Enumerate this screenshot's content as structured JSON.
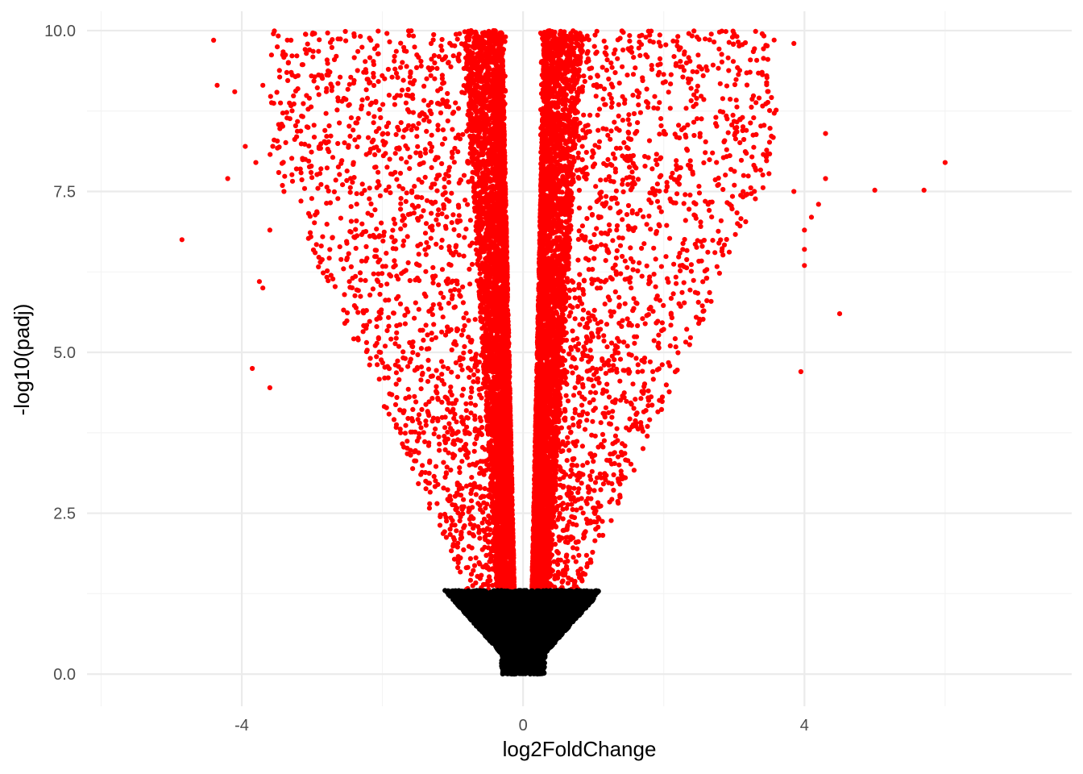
{
  "chart_data": {
    "type": "scatter",
    "title": "",
    "xlabel": "log2FoldChange",
    "ylabel": "-log10(padj)",
    "xlim": [
      -6.2,
      7.8
    ],
    "ylim": [
      -0.5,
      10.3
    ],
    "x_ticks": [
      {
        "value": -4,
        "label": "-4"
      },
      {
        "value": 0,
        "label": "0"
      },
      {
        "value": 4,
        "label": "4"
      }
    ],
    "x_minor_ticks": [
      -6,
      -2,
      2,
      6
    ],
    "y_ticks": [
      {
        "value": 0,
        "label": "0.0"
      },
      {
        "value": 2.5,
        "label": "2.5"
      },
      {
        "value": 5,
        "label": "5.0"
      },
      {
        "value": 7.5,
        "label": "7.5"
      },
      {
        "value": 10,
        "label": "10.0"
      }
    ],
    "y_minor_ticks": [
      1.25,
      3.75,
      6.25,
      8.75
    ],
    "grid": true,
    "legend": "none",
    "significance_threshold": 1.3,
    "colors": {
      "significant": "#ff0000",
      "not_significant": "#000000"
    },
    "series": [
      {
        "color": "#ff0000",
        "points": [
          {
            "x": 6.0,
            "y": 7.95
          },
          {
            "x": 5.7,
            "y": 7.52
          },
          {
            "x": 5.0,
            "y": 7.52
          },
          {
            "x": 4.5,
            "y": 5.6
          },
          {
            "x": 4.3,
            "y": 8.4
          },
          {
            "x": 4.3,
            "y": 7.7
          },
          {
            "x": 4.2,
            "y": 7.3
          },
          {
            "x": 4.1,
            "y": 7.1
          },
          {
            "x": 4.0,
            "y": 6.9
          },
          {
            "x": 4.0,
            "y": 6.6
          },
          {
            "x": 4.0,
            "y": 6.35
          },
          {
            "x": 3.95,
            "y": 4.7
          },
          {
            "x": 3.85,
            "y": 7.5
          },
          {
            "x": 3.85,
            "y": 9.8
          },
          {
            "x": 3.4,
            "y": 9.95
          },
          {
            "x": 3.0,
            "y": 9.95
          },
          {
            "x": -4.85,
            "y": 6.75
          },
          {
            "x": -4.4,
            "y": 9.85
          },
          {
            "x": -4.35,
            "y": 9.15
          },
          {
            "x": -4.1,
            "y": 9.05
          },
          {
            "x": -4.2,
            "y": 7.7
          },
          {
            "x": -3.95,
            "y": 8.2
          },
          {
            "x": -3.8,
            "y": 7.95
          },
          {
            "x": -3.85,
            "y": 4.75
          },
          {
            "x": -3.75,
            "y": 6.1
          },
          {
            "x": -3.7,
            "y": 6.0
          },
          {
            "x": -3.7,
            "y": 9.15
          },
          {
            "x": -3.6,
            "y": 6.9
          },
          {
            "x": -3.55,
            "y": 9.95
          },
          {
            "x": -3.6,
            "y": 4.45
          },
          {
            "x": -3.3,
            "y": 9.85
          },
          {
            "x": -3.4,
            "y": 7.5
          },
          {
            "x": -3.2,
            "y": 9.3
          }
        ]
      },
      {
        "color": "#000000",
        "points": []
      }
    ]
  }
}
